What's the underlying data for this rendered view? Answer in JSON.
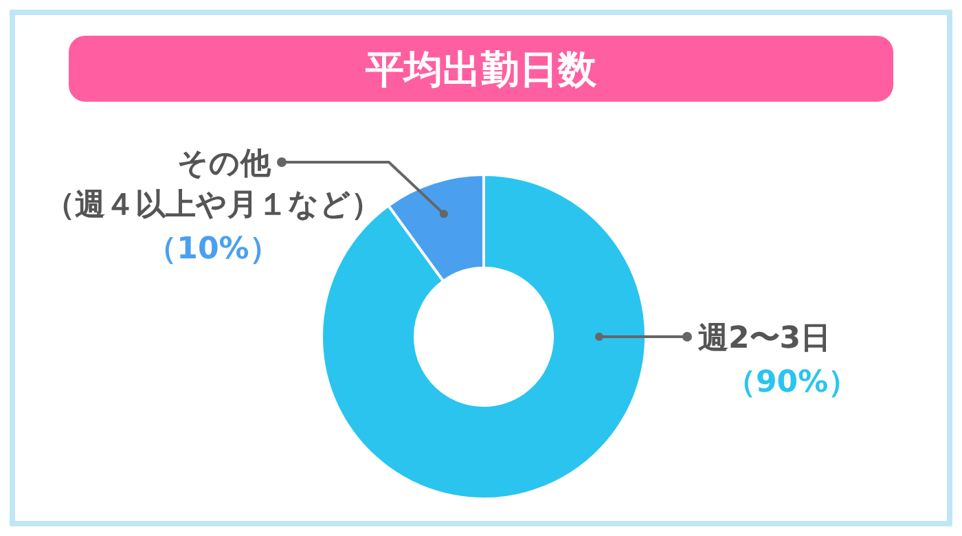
{
  "chart_data": {
    "type": "donut",
    "title": "平均出勤日数",
    "categories": [
      "週2〜3日",
      "その他（週４以上や月１など）"
    ],
    "values": [
      90,
      10
    ],
    "colors": [
      "#2ac4ef",
      "#4aa0ef"
    ],
    "value_labels": [
      "（90%）",
      "（10%）"
    ]
  }
}
